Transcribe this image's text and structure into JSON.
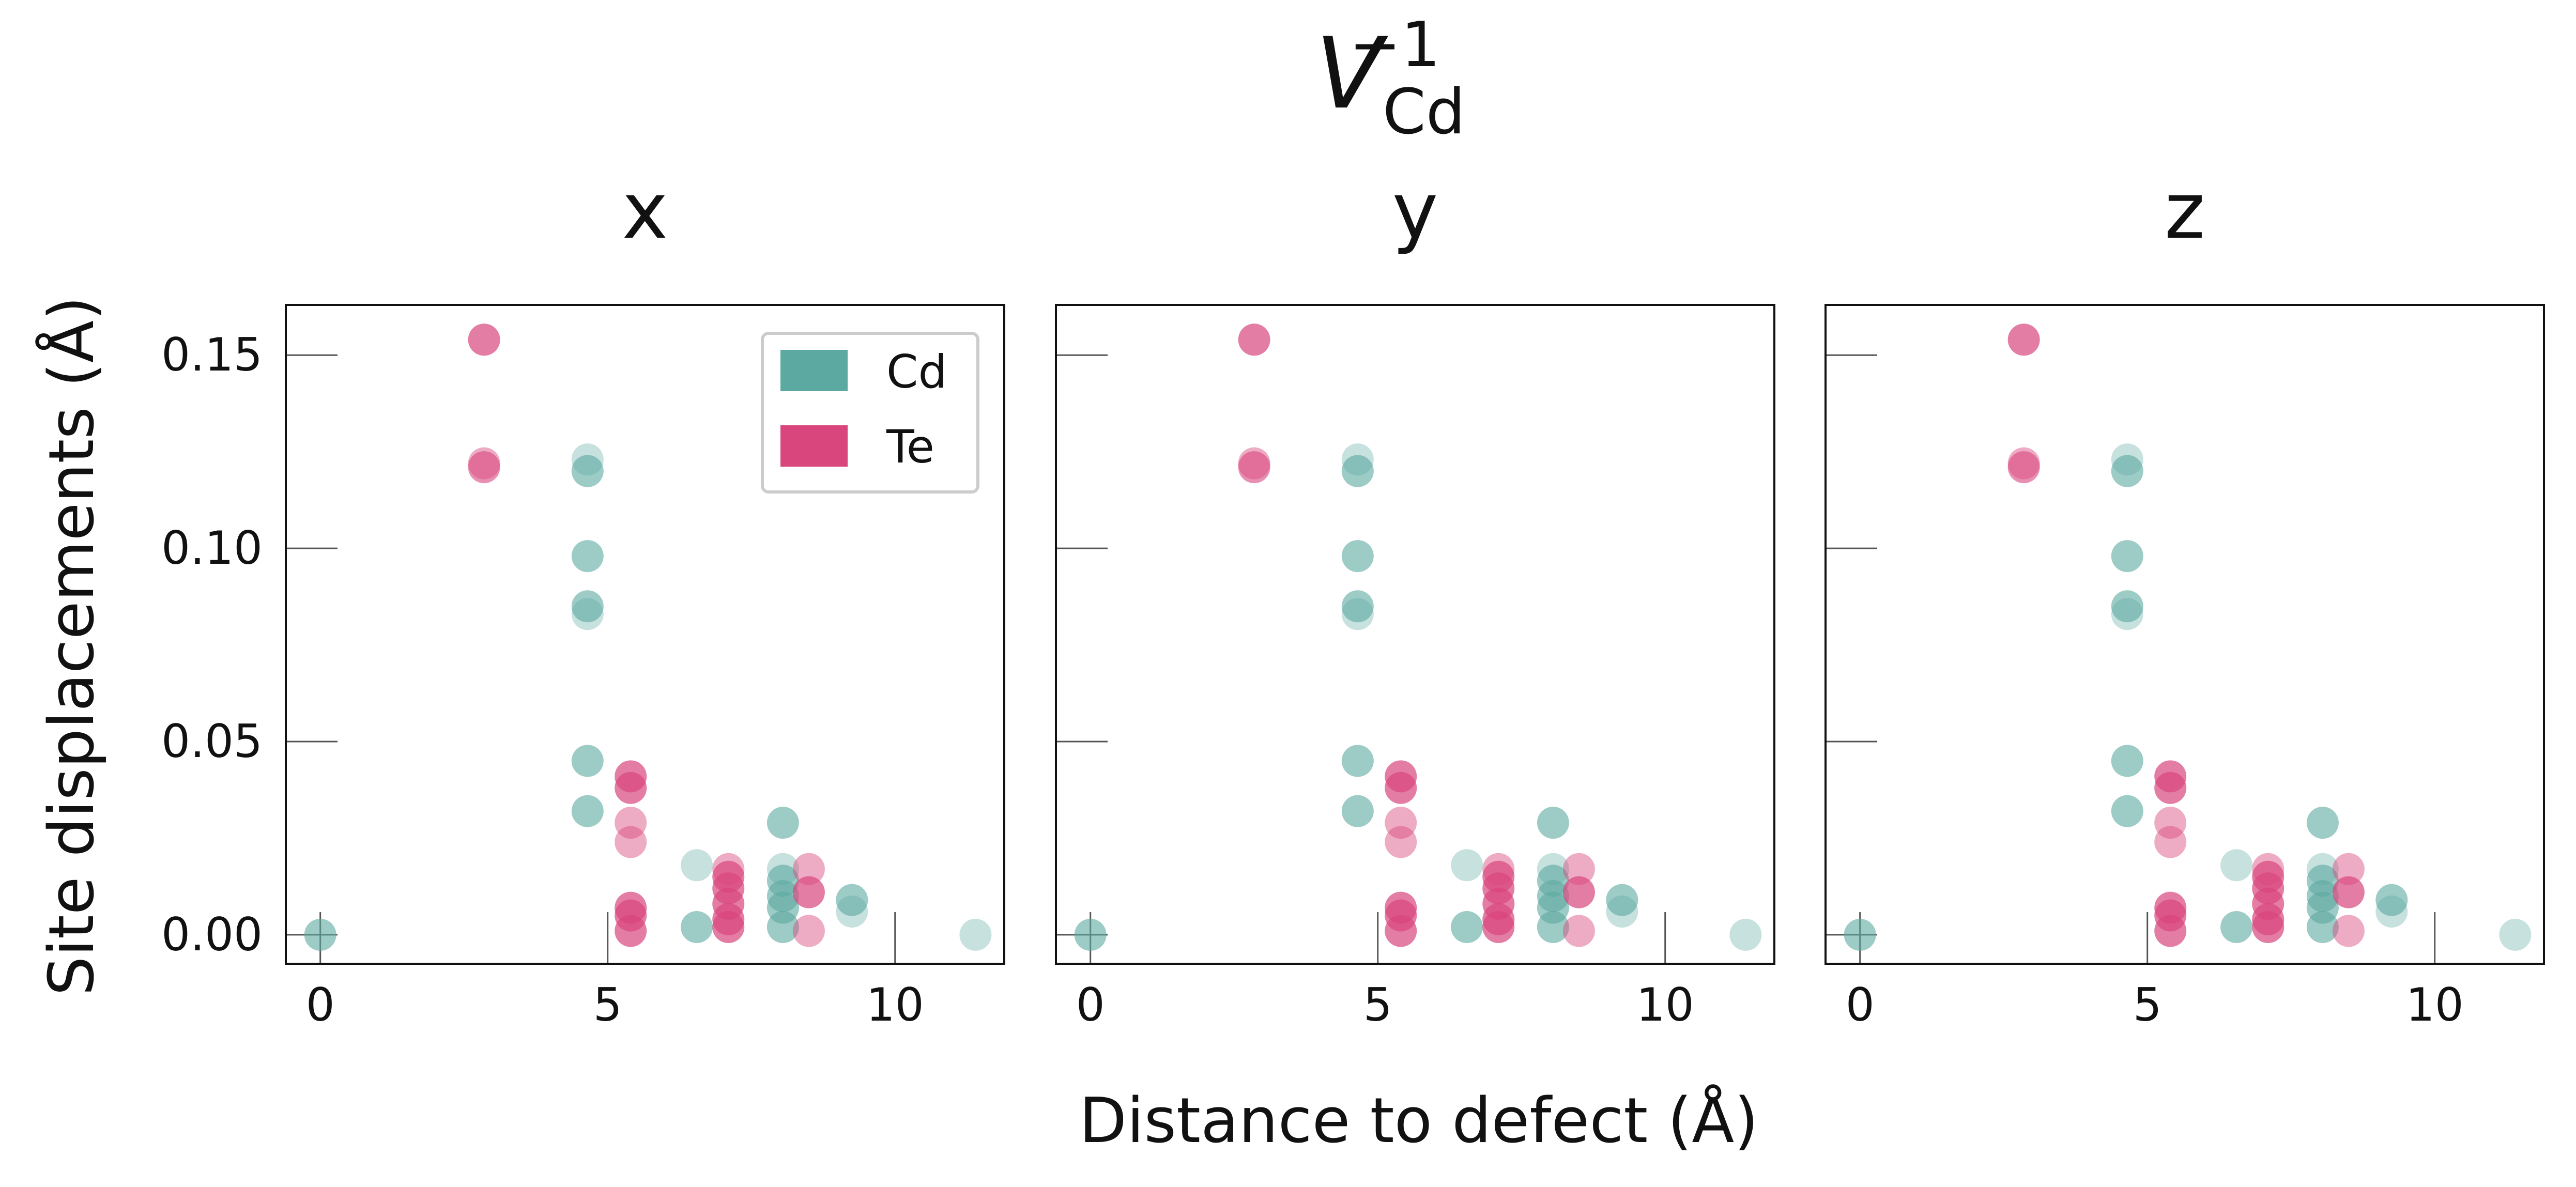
{
  "figure": {
    "title_main": "V",
    "title_sub": "Cd",
    "title_sup": "−1",
    "xlabel": "Distance to defect (Å)",
    "ylabel": "Site displacements (Å)"
  },
  "legend": {
    "placement": "top-right",
    "entries": [
      {
        "label": "Cd",
        "color": "#5BA9A0"
      },
      {
        "label": "Te",
        "color": "#D9467D"
      }
    ]
  },
  "colors": {
    "Cd": "#5BA9A0",
    "Te": "#D9467D"
  },
  "chart_data": [
    {
      "type": "scatter",
      "title": "x",
      "xlim": [
        -0.6,
        11.9
      ],
      "ylim": [
        -0.0075,
        0.163
      ],
      "xticks": [
        0,
        5,
        10
      ],
      "yticks": [
        0.0,
        0.05,
        0.1,
        0.15
      ],
      "ytick_labels": [
        "0.00",
        "0.05",
        "0.10",
        "0.15"
      ],
      "series": [
        {
          "name": "Cd",
          "color": "#5BA9A0",
          "points": [
            {
              "x": 0,
              "y": 0.0,
              "a": 0.6
            },
            {
              "x": 4.65,
              "y": 0.123,
              "a": 0.35
            },
            {
              "x": 4.65,
              "y": 0.12,
              "a": 0.6
            },
            {
              "x": 4.65,
              "y": 0.098,
              "a": 0.6
            },
            {
              "x": 4.65,
              "y": 0.085,
              "a": 0.6
            },
            {
              "x": 4.65,
              "y": 0.083,
              "a": 0.35
            },
            {
              "x": 4.65,
              "y": 0.045,
              "a": 0.6
            },
            {
              "x": 4.65,
              "y": 0.032,
              "a": 0.6
            },
            {
              "x": 6.55,
              "y": 0.018,
              "a": 0.35
            },
            {
              "x": 6.55,
              "y": 0.002,
              "a": 0.6
            },
            {
              "x": 8.05,
              "y": 0.029,
              "a": 0.6
            },
            {
              "x": 8.05,
              "y": 0.017,
              "a": 0.35
            },
            {
              "x": 8.05,
              "y": 0.014,
              "a": 0.6
            },
            {
              "x": 8.05,
              "y": 0.01,
              "a": 0.6
            },
            {
              "x": 8.05,
              "y": 0.007,
              "a": 0.6
            },
            {
              "x": 8.05,
              "y": 0.002,
              "a": 0.6
            },
            {
              "x": 9.25,
              "y": 0.009,
              "a": 0.6
            },
            {
              "x": 9.25,
              "y": 0.006,
              "a": 0.35
            },
            {
              "x": 11.4,
              "y": 0.0,
              "a": 0.35
            }
          ]
        },
        {
          "name": "Te",
          "color": "#D9467D",
          "points": [
            {
              "x": 2.85,
              "y": 0.154,
              "a": 0.7
            },
            {
              "x": 2.85,
              "y": 0.122,
              "a": 0.45
            },
            {
              "x": 2.85,
              "y": 0.121,
              "a": 0.6
            },
            {
              "x": 5.4,
              "y": 0.041,
              "a": 0.7
            },
            {
              "x": 5.4,
              "y": 0.038,
              "a": 0.7
            },
            {
              "x": 5.4,
              "y": 0.029,
              "a": 0.45
            },
            {
              "x": 5.4,
              "y": 0.024,
              "a": 0.45
            },
            {
              "x": 5.4,
              "y": 0.007,
              "a": 0.7
            },
            {
              "x": 5.4,
              "y": 0.005,
              "a": 0.7
            },
            {
              "x": 5.4,
              "y": 0.001,
              "a": 0.7
            },
            {
              "x": 7.1,
              "y": 0.017,
              "a": 0.45
            },
            {
              "x": 7.1,
              "y": 0.015,
              "a": 0.7
            },
            {
              "x": 7.1,
              "y": 0.012,
              "a": 0.7
            },
            {
              "x": 7.1,
              "y": 0.008,
              "a": 0.7
            },
            {
              "x": 7.1,
              "y": 0.004,
              "a": 0.7
            },
            {
              "x": 7.1,
              "y": 0.002,
              "a": 0.7
            },
            {
              "x": 8.5,
              "y": 0.017,
              "a": 0.45
            },
            {
              "x": 8.5,
              "y": 0.011,
              "a": 0.7
            },
            {
              "x": 8.5,
              "y": 0.001,
              "a": 0.45
            }
          ]
        }
      ]
    },
    {
      "type": "scatter",
      "title": "y",
      "xlim": [
        -0.6,
        11.9
      ],
      "ylim": [
        -0.0075,
        0.163
      ],
      "xticks": [
        0,
        5,
        10
      ],
      "yticks": [
        0.0,
        0.05,
        0.1,
        0.15
      ],
      "ytick_labels": [
        "",
        "",
        "",
        ""
      ],
      "series": [
        {
          "name": "Cd",
          "color": "#5BA9A0",
          "points": [
            {
              "x": 0,
              "y": 0.0,
              "a": 0.6
            },
            {
              "x": 4.65,
              "y": 0.123,
              "a": 0.35
            },
            {
              "x": 4.65,
              "y": 0.12,
              "a": 0.6
            },
            {
              "x": 4.65,
              "y": 0.098,
              "a": 0.6
            },
            {
              "x": 4.65,
              "y": 0.085,
              "a": 0.6
            },
            {
              "x": 4.65,
              "y": 0.083,
              "a": 0.35
            },
            {
              "x": 4.65,
              "y": 0.045,
              "a": 0.6
            },
            {
              "x": 4.65,
              "y": 0.032,
              "a": 0.6
            },
            {
              "x": 6.55,
              "y": 0.018,
              "a": 0.35
            },
            {
              "x": 6.55,
              "y": 0.002,
              "a": 0.6
            },
            {
              "x": 8.05,
              "y": 0.029,
              "a": 0.6
            },
            {
              "x": 8.05,
              "y": 0.017,
              "a": 0.35
            },
            {
              "x": 8.05,
              "y": 0.014,
              "a": 0.6
            },
            {
              "x": 8.05,
              "y": 0.01,
              "a": 0.6
            },
            {
              "x": 8.05,
              "y": 0.007,
              "a": 0.6
            },
            {
              "x": 8.05,
              "y": 0.002,
              "a": 0.6
            },
            {
              "x": 9.25,
              "y": 0.009,
              "a": 0.6
            },
            {
              "x": 9.25,
              "y": 0.006,
              "a": 0.35
            },
            {
              "x": 11.4,
              "y": 0.0,
              "a": 0.35
            }
          ]
        },
        {
          "name": "Te",
          "color": "#D9467D",
          "points": [
            {
              "x": 2.85,
              "y": 0.154,
              "a": 0.7
            },
            {
              "x": 2.85,
              "y": 0.122,
              "a": 0.45
            },
            {
              "x": 2.85,
              "y": 0.121,
              "a": 0.6
            },
            {
              "x": 5.4,
              "y": 0.041,
              "a": 0.7
            },
            {
              "x": 5.4,
              "y": 0.038,
              "a": 0.7
            },
            {
              "x": 5.4,
              "y": 0.029,
              "a": 0.45
            },
            {
              "x": 5.4,
              "y": 0.024,
              "a": 0.45
            },
            {
              "x": 5.4,
              "y": 0.007,
              "a": 0.7
            },
            {
              "x": 5.4,
              "y": 0.005,
              "a": 0.7
            },
            {
              "x": 5.4,
              "y": 0.001,
              "a": 0.7
            },
            {
              "x": 7.1,
              "y": 0.017,
              "a": 0.45
            },
            {
              "x": 7.1,
              "y": 0.015,
              "a": 0.7
            },
            {
              "x": 7.1,
              "y": 0.012,
              "a": 0.7
            },
            {
              "x": 7.1,
              "y": 0.008,
              "a": 0.7
            },
            {
              "x": 7.1,
              "y": 0.004,
              "a": 0.7
            },
            {
              "x": 7.1,
              "y": 0.002,
              "a": 0.7
            },
            {
              "x": 8.5,
              "y": 0.017,
              "a": 0.45
            },
            {
              "x": 8.5,
              "y": 0.011,
              "a": 0.7
            },
            {
              "x": 8.5,
              "y": 0.001,
              "a": 0.45
            }
          ]
        }
      ]
    },
    {
      "type": "scatter",
      "title": "z",
      "xlim": [
        -0.6,
        11.9
      ],
      "ylim": [
        -0.0075,
        0.163
      ],
      "xticks": [
        0,
        5,
        10
      ],
      "yticks": [
        0.0,
        0.05,
        0.1,
        0.15
      ],
      "ytick_labels": [
        "",
        "",
        "",
        ""
      ],
      "series": [
        {
          "name": "Cd",
          "color": "#5BA9A0",
          "points": [
            {
              "x": 0,
              "y": 0.0,
              "a": 0.6
            },
            {
              "x": 4.65,
              "y": 0.123,
              "a": 0.35
            },
            {
              "x": 4.65,
              "y": 0.12,
              "a": 0.6
            },
            {
              "x": 4.65,
              "y": 0.098,
              "a": 0.6
            },
            {
              "x": 4.65,
              "y": 0.085,
              "a": 0.6
            },
            {
              "x": 4.65,
              "y": 0.083,
              "a": 0.35
            },
            {
              "x": 4.65,
              "y": 0.045,
              "a": 0.6
            },
            {
              "x": 4.65,
              "y": 0.032,
              "a": 0.6
            },
            {
              "x": 6.55,
              "y": 0.018,
              "a": 0.35
            },
            {
              "x": 6.55,
              "y": 0.002,
              "a": 0.6
            },
            {
              "x": 8.05,
              "y": 0.029,
              "a": 0.6
            },
            {
              "x": 8.05,
              "y": 0.017,
              "a": 0.35
            },
            {
              "x": 8.05,
              "y": 0.014,
              "a": 0.6
            },
            {
              "x": 8.05,
              "y": 0.01,
              "a": 0.6
            },
            {
              "x": 8.05,
              "y": 0.007,
              "a": 0.6
            },
            {
              "x": 8.05,
              "y": 0.002,
              "a": 0.6
            },
            {
              "x": 9.25,
              "y": 0.009,
              "a": 0.6
            },
            {
              "x": 9.25,
              "y": 0.006,
              "a": 0.35
            },
            {
              "x": 11.4,
              "y": 0.0,
              "a": 0.35
            }
          ]
        },
        {
          "name": "Te",
          "color": "#D9467D",
          "points": [
            {
              "x": 2.85,
              "y": 0.154,
              "a": 0.7
            },
            {
              "x": 2.85,
              "y": 0.122,
              "a": 0.45
            },
            {
              "x": 2.85,
              "y": 0.121,
              "a": 0.6
            },
            {
              "x": 5.4,
              "y": 0.041,
              "a": 0.7
            },
            {
              "x": 5.4,
              "y": 0.038,
              "a": 0.7
            },
            {
              "x": 5.4,
              "y": 0.029,
              "a": 0.45
            },
            {
              "x": 5.4,
              "y": 0.024,
              "a": 0.45
            },
            {
              "x": 5.4,
              "y": 0.007,
              "a": 0.7
            },
            {
              "x": 5.4,
              "y": 0.005,
              "a": 0.7
            },
            {
              "x": 5.4,
              "y": 0.001,
              "a": 0.7
            },
            {
              "x": 7.1,
              "y": 0.017,
              "a": 0.45
            },
            {
              "x": 7.1,
              "y": 0.015,
              "a": 0.7
            },
            {
              "x": 7.1,
              "y": 0.012,
              "a": 0.7
            },
            {
              "x": 7.1,
              "y": 0.008,
              "a": 0.7
            },
            {
              "x": 7.1,
              "y": 0.004,
              "a": 0.7
            },
            {
              "x": 7.1,
              "y": 0.002,
              "a": 0.7
            },
            {
              "x": 8.5,
              "y": 0.017,
              "a": 0.45
            },
            {
              "x": 8.5,
              "y": 0.011,
              "a": 0.7
            },
            {
              "x": 8.5,
              "y": 0.001,
              "a": 0.45
            }
          ]
        }
      ]
    }
  ]
}
